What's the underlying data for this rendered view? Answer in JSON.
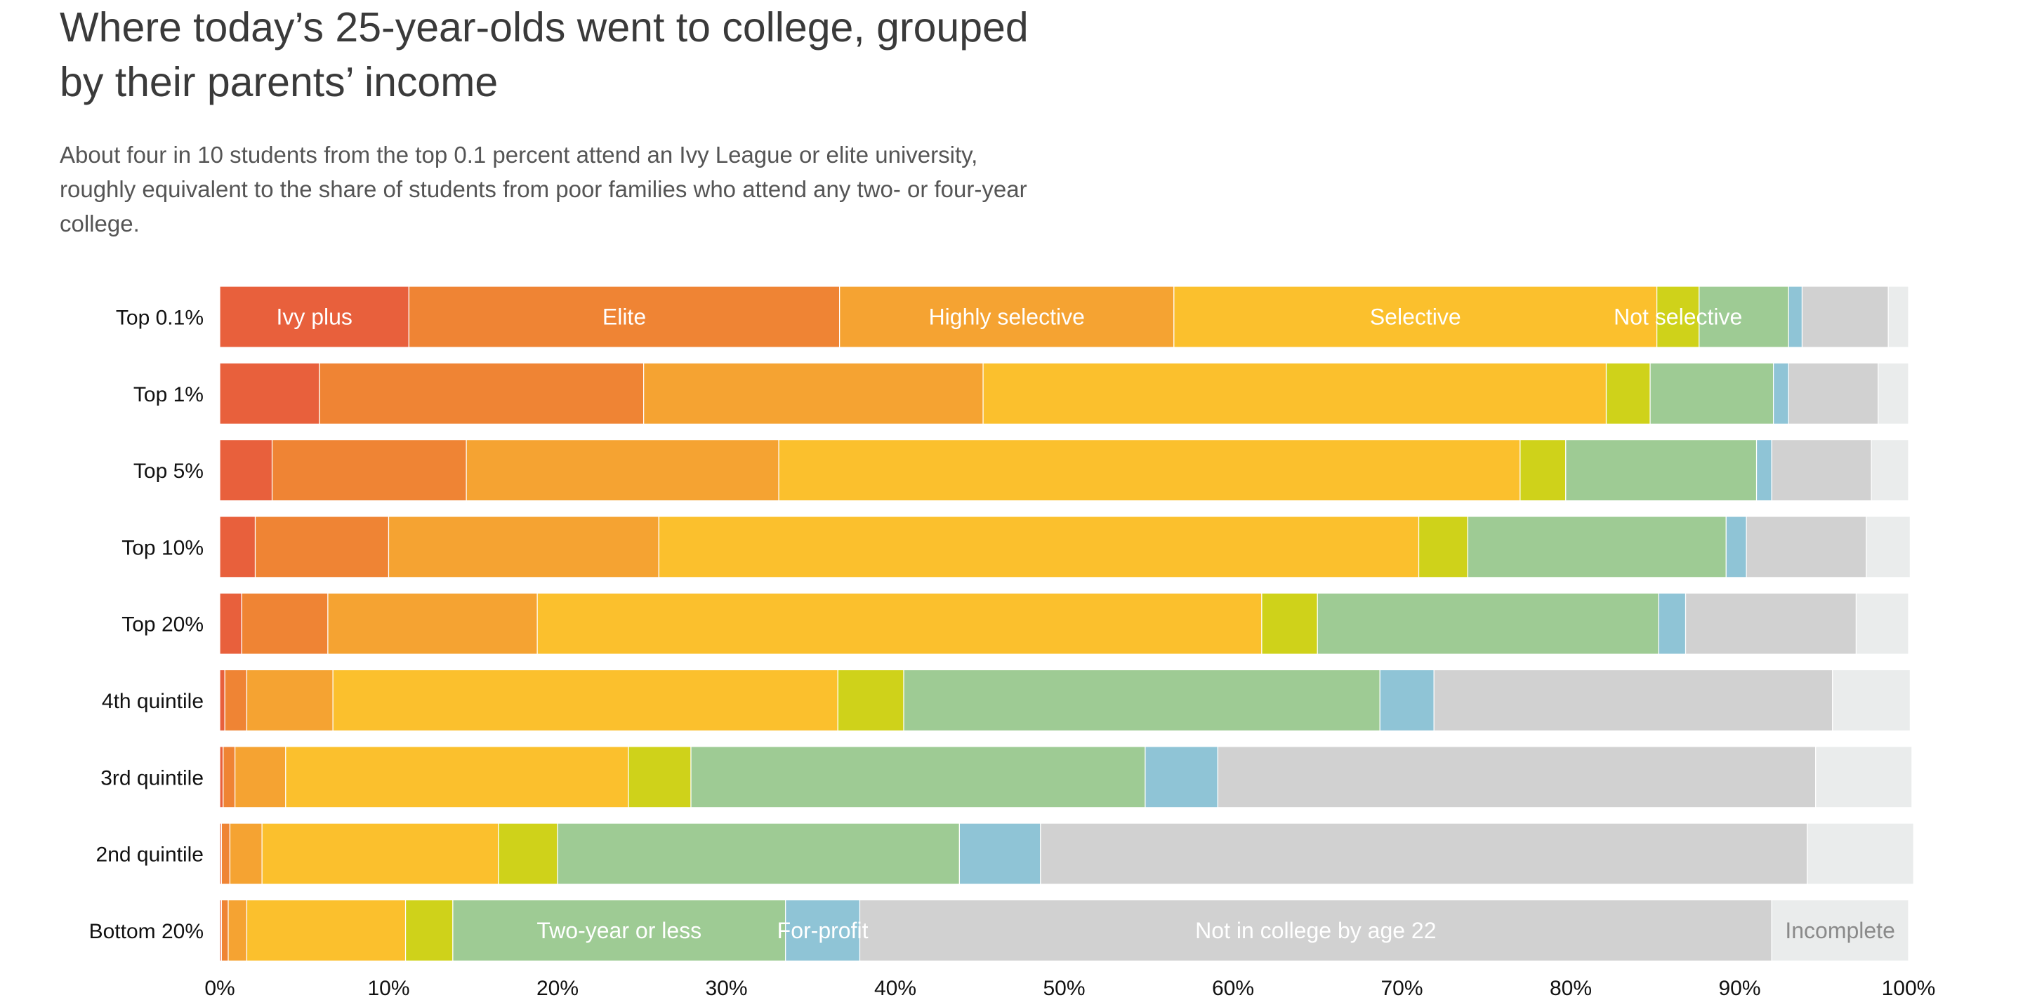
{
  "header": {
    "title": "Where today’s 25-year-olds went to college, grouped by their parents’ income",
    "subtitle": "About four in 10 students from the top 0.1 percent attend an Ivy League or elite university, roughly equivalent to the share of students from poor families who attend any two- or four-year college."
  },
  "chart_data": {
    "type": "bar",
    "orientation": "horizontal",
    "stacked": true,
    "title": "Where today’s 25-year-olds went to college, grouped by their parents’ income",
    "categories": [
      "Top 0.1%",
      "Top 1%",
      "Top 5%",
      "Top 10%",
      "Top 20%",
      "4th quintile",
      "3rd quintile",
      "2nd quintile",
      "Bottom 20%"
    ],
    "xlim": [
      0,
      100
    ],
    "xticks": [
      "0%",
      "10%",
      "20%",
      "30%",
      "40%",
      "50%",
      "60%",
      "70%",
      "80%",
      "90%",
      "100%"
    ],
    "legend": "inline labels",
    "series": [
      {
        "name": "Ivy plus",
        "color": "#e8603c",
        "label_row": 0,
        "values": [
          11.2,
          5.9,
          3.1,
          2.1,
          1.3,
          0.3,
          0.2,
          0.1,
          0.1
        ]
      },
      {
        "name": "Elite",
        "color": "#ef8434",
        "label_row": 0,
        "values": [
          25.5,
          19.2,
          11.5,
          7.9,
          5.1,
          1.3,
          0.7,
          0.5,
          0.4
        ]
      },
      {
        "name": "Highly selective",
        "color": "#f5a332",
        "label_row": 0,
        "values": [
          19.8,
          20.1,
          18.5,
          16.0,
          12.4,
          5.1,
          3.0,
          1.9,
          1.1
        ]
      },
      {
        "name": "Selective",
        "color": "#fbc02d",
        "label_row": 0,
        "values": [
          28.6,
          36.9,
          43.9,
          45.0,
          42.9,
          29.9,
          20.3,
          14.0,
          9.4
        ]
      },
      {
        "name": "Not selective",
        "color": "#cfd21a",
        "label_row": 0,
        "values": [
          2.5,
          2.6,
          2.7,
          2.9,
          3.3,
          3.9,
          3.7,
          3.5,
          2.8
        ]
      },
      {
        "name": "Two-year or less",
        "color": "#9ecb94",
        "label_row": 8,
        "values": [
          5.3,
          7.3,
          11.3,
          15.3,
          20.2,
          28.2,
          26.9,
          23.8,
          19.7
        ]
      },
      {
        "name": "For-profit",
        "color": "#8fc4d6",
        "label_row": 8,
        "values": [
          0.8,
          0.9,
          0.9,
          1.2,
          1.6,
          3.2,
          4.3,
          4.8,
          4.4
        ]
      },
      {
        "name": "Not in college by age 22",
        "color": "#d1d1d1",
        "label_row": 8,
        "values": [
          5.1,
          5.3,
          5.9,
          7.1,
          10.1,
          23.6,
          35.4,
          45.4,
          54.0
        ]
      },
      {
        "name": "Incomplete",
        "color": "#eaecec",
        "label_row": 8,
        "values": [
          1.2,
          1.8,
          2.2,
          2.6,
          3.1,
          4.6,
          5.7,
          6.3,
          8.1
        ]
      }
    ]
  }
}
